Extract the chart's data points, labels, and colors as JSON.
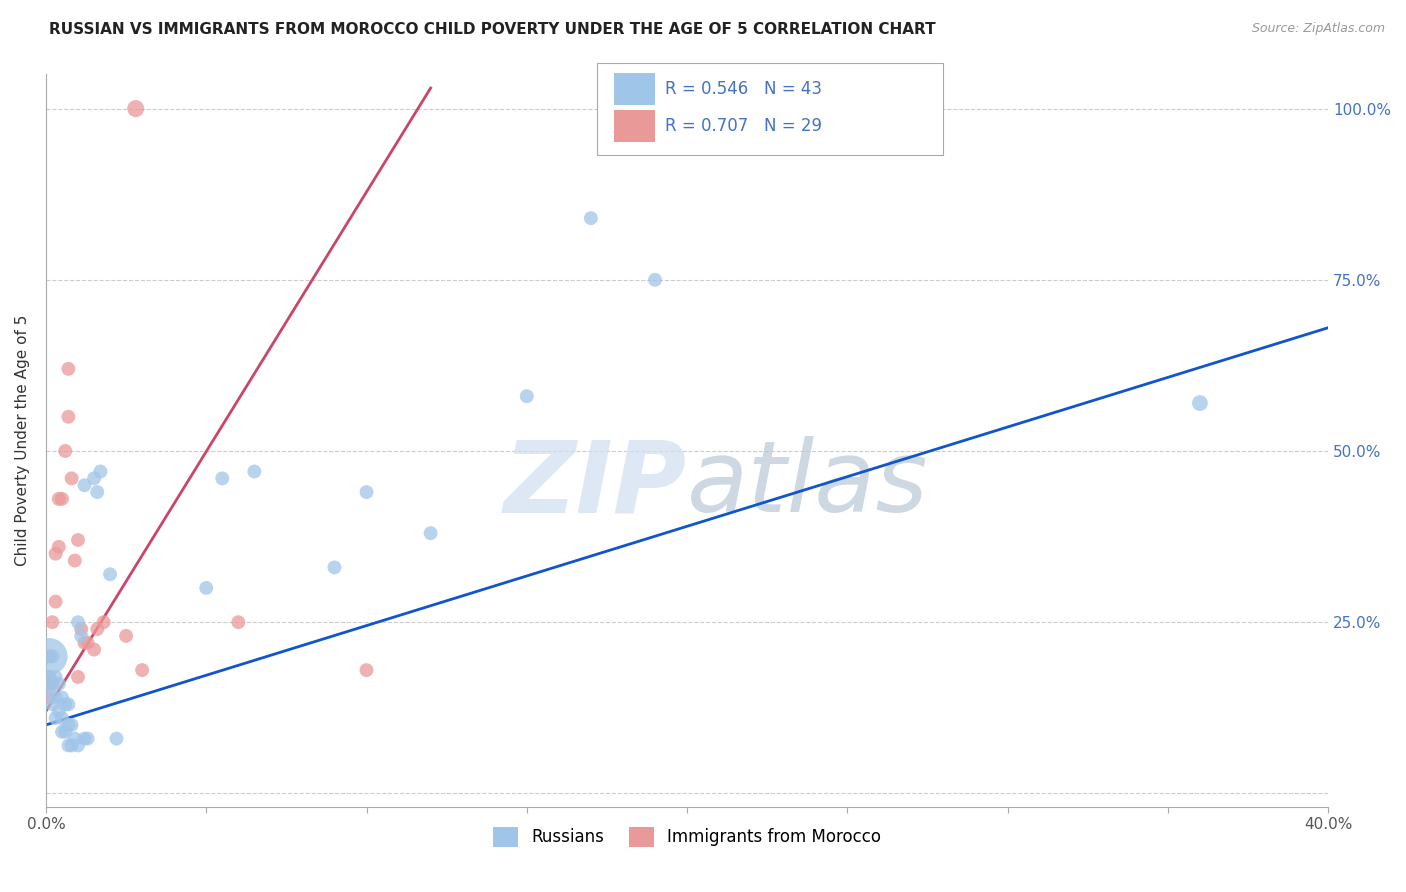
{
  "title": "RUSSIAN VS IMMIGRANTS FROM MOROCCO CHILD POVERTY UNDER THE AGE OF 5 CORRELATION CHART",
  "source": "Source: ZipAtlas.com",
  "ylabel": "Child Poverty Under the Age of 5",
  "xlim": [
    0.0,
    0.4
  ],
  "ylim": [
    -0.02,
    1.05
  ],
  "ytick_values": [
    0.0,
    0.25,
    0.5,
    0.75,
    1.0
  ],
  "xtick_values": [
    0.0,
    0.05,
    0.1,
    0.15,
    0.2,
    0.25,
    0.3,
    0.35,
    0.4
  ],
  "legend_blue_label": "Russians",
  "legend_pink_label": "Immigrants from Morocco",
  "r_blue": "R = 0.546",
  "n_blue": "N = 43",
  "r_pink": "R = 0.707",
  "n_pink": "N = 29",
  "blue_color": "#9fc5e8",
  "pink_color": "#ea9999",
  "blue_line_color": "#1155cc",
  "pink_line_color": "#cc4466",
  "watermark_zip": "ZIP",
  "watermark_atlas": "atlas",
  "russians_x": [
    0.001,
    0.001,
    0.001,
    0.002,
    0.002,
    0.002,
    0.003,
    0.003,
    0.003,
    0.004,
    0.004,
    0.005,
    0.005,
    0.005,
    0.006,
    0.006,
    0.007,
    0.007,
    0.007,
    0.008,
    0.008,
    0.009,
    0.01,
    0.01,
    0.011,
    0.012,
    0.012,
    0.013,
    0.015,
    0.016,
    0.017,
    0.02,
    0.022,
    0.05,
    0.055,
    0.065,
    0.09,
    0.1,
    0.12,
    0.15,
    0.17,
    0.19,
    0.36
  ],
  "russians_y": [
    0.2,
    0.17,
    0.15,
    0.2,
    0.16,
    0.13,
    0.17,
    0.14,
    0.11,
    0.16,
    0.12,
    0.14,
    0.11,
    0.09,
    0.13,
    0.09,
    0.13,
    0.1,
    0.07,
    0.1,
    0.07,
    0.08,
    0.07,
    0.25,
    0.23,
    0.08,
    0.45,
    0.08,
    0.46,
    0.44,
    0.47,
    0.32,
    0.08,
    0.3,
    0.46,
    0.47,
    0.33,
    0.44,
    0.38,
    0.58,
    0.84,
    0.75,
    0.57
  ],
  "russians_size": [
    700,
    100,
    100,
    100,
    100,
    100,
    100,
    100,
    100,
    100,
    100,
    100,
    100,
    100,
    100,
    100,
    100,
    100,
    100,
    100,
    100,
    100,
    100,
    100,
    100,
    100,
    100,
    100,
    100,
    100,
    100,
    100,
    100,
    100,
    100,
    100,
    100,
    100,
    100,
    100,
    100,
    100,
    130
  ],
  "morocco_x": [
    0.001,
    0.001,
    0.001,
    0.001,
    0.002,
    0.002,
    0.003,
    0.003,
    0.004,
    0.004,
    0.005,
    0.006,
    0.007,
    0.007,
    0.008,
    0.009,
    0.01,
    0.01,
    0.011,
    0.012,
    0.013,
    0.015,
    0.016,
    0.018,
    0.025,
    0.028,
    0.03,
    0.06,
    0.1
  ],
  "morocco_y": [
    0.2,
    0.17,
    0.16,
    0.14,
    0.25,
    0.16,
    0.35,
    0.28,
    0.43,
    0.36,
    0.43,
    0.5,
    0.62,
    0.55,
    0.46,
    0.34,
    0.37,
    0.17,
    0.24,
    0.22,
    0.22,
    0.21,
    0.24,
    0.25,
    0.23,
    1.0,
    0.18,
    0.25,
    0.18
  ],
  "morocco_size": [
    100,
    100,
    100,
    100,
    100,
    100,
    100,
    100,
    100,
    100,
    100,
    100,
    100,
    100,
    100,
    100,
    100,
    100,
    100,
    100,
    100,
    100,
    100,
    100,
    100,
    150,
    100,
    100,
    100
  ],
  "blue_line_x0": 0.0,
  "blue_line_y0": 0.1,
  "blue_line_x1": 0.4,
  "blue_line_y1": 0.68,
  "pink_line_x0": 0.0,
  "pink_line_y0": 0.12,
  "pink_line_x1": 0.12,
  "pink_line_y1": 1.03
}
